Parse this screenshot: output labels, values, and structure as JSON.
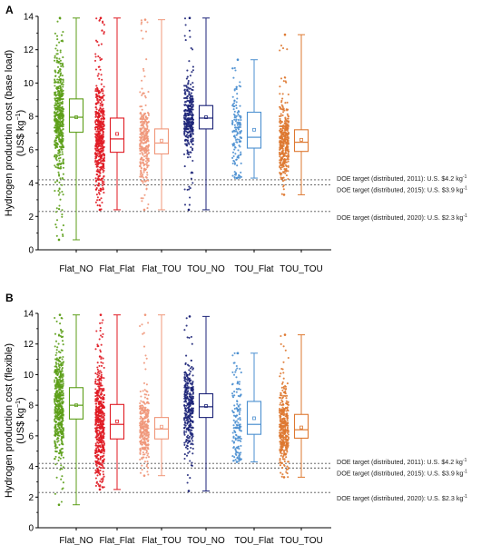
{
  "chart_data": [
    {
      "panel_label": "A",
      "type": "box-scatter",
      "ylabel_line1": "Hydrogen production cost (base load)",
      "ylabel_line2": "(US$ kg",
      "ylabel_sup": "−1",
      "ylabel_close": ")",
      "ylim": [
        0,
        14
      ],
      "yticks": [
        0,
        2,
        4,
        6,
        8,
        10,
        12,
        14
      ],
      "categories": [
        "Flat_NO",
        "Flat_Flat",
        "Flat_TOU",
        "TOU_NO",
        "TOU_Flat",
        "TOU_TOU"
      ],
      "colors": [
        "#5c9e18",
        "#e01b23",
        "#f0977a",
        "#1c2378",
        "#4b8fd0",
        "#de7830"
      ],
      "boxes": [
        {
          "whisker_low": 0.6,
          "q1": 7.05,
          "median": 7.95,
          "q3": 9.05,
          "whisker_high": 13.9,
          "mean": 7.95
        },
        {
          "whisker_low": 2.4,
          "q1": 5.85,
          "median": 6.65,
          "q3": 7.9,
          "whisker_high": 13.9,
          "mean": 6.95
        },
        {
          "whisker_low": 2.4,
          "q1": 5.75,
          "median": 6.4,
          "q3": 7.25,
          "whisker_high": 13.8,
          "mean": 6.55
        },
        {
          "whisker_low": 2.4,
          "q1": 7.25,
          "median": 7.9,
          "q3": 8.65,
          "whisker_high": 13.9,
          "mean": 7.95
        },
        {
          "whisker_low": 4.3,
          "q1": 6.1,
          "median": 6.75,
          "q3": 8.25,
          "whisker_high": 11.4,
          "mean": 7.2
        },
        {
          "whisker_low": 3.3,
          "q1": 5.9,
          "median": 6.45,
          "q3": 7.2,
          "whisker_high": 12.9,
          "mean": 6.6
        }
      ],
      "reference_lines": [
        {
          "value": 4.2,
          "label": "DOE target (distributed, 2011): U.S. $4.2 kg",
          "sup": "-1"
        },
        {
          "value": 3.9,
          "label": "DOE target (distributed, 2015): U.S. $3.9 kg",
          "sup": "-1"
        },
        {
          "value": 2.3,
          "label": "DOE target (distributed, 2020): U.S. $2.3 kg",
          "sup": "-1"
        }
      ]
    },
    {
      "panel_label": "B",
      "type": "box-scatter",
      "ylabel_line1": "Hydrogen production cost (flexible)",
      "ylabel_line2": "(US$ kg",
      "ylabel_sup": "−1",
      "ylabel_close": ")",
      "ylim": [
        0,
        14
      ],
      "yticks": [
        0,
        2,
        4,
        6,
        8,
        10,
        12,
        14
      ],
      "categories": [
        "Flat_NO",
        "Flat_Flat",
        "Flat_TOU",
        "TOU_NO",
        "TOU_Flat",
        "TOU_TOU"
      ],
      "colors": [
        "#5c9e18",
        "#e01b23",
        "#f0977a",
        "#1c2378",
        "#4b8fd0",
        "#de7830"
      ],
      "boxes": [
        {
          "whisker_low": 1.5,
          "q1": 7.1,
          "median": 8.0,
          "q3": 9.15,
          "whisker_high": 13.9,
          "mean": 8.0
        },
        {
          "whisker_low": 2.5,
          "q1": 5.8,
          "median": 6.75,
          "q3": 8.05,
          "whisker_high": 13.9,
          "mean": 6.95
        },
        {
          "whisker_low": 3.4,
          "q1": 5.8,
          "median": 6.45,
          "q3": 7.2,
          "whisker_high": 13.9,
          "mean": 6.6
        },
        {
          "whisker_low": 2.4,
          "q1": 7.2,
          "median": 7.9,
          "q3": 8.75,
          "whisker_high": 13.8,
          "mean": 7.95
        },
        {
          "whisker_low": 4.3,
          "q1": 6.1,
          "median": 6.75,
          "q3": 8.25,
          "whisker_high": 11.4,
          "mean": 7.15
        },
        {
          "whisker_low": 3.3,
          "q1": 5.85,
          "median": 6.4,
          "q3": 7.4,
          "whisker_high": 12.6,
          "mean": 6.55
        }
      ],
      "reference_lines": [
        {
          "value": 4.2,
          "label": "DOE target (distributed, 2011): U.S. $4.2 kg",
          "sup": "-1"
        },
        {
          "value": 3.9,
          "label": "DOE target (distributed, 2015): U.S. $3.9 kg",
          "sup": "-1"
        },
        {
          "value": 2.3,
          "label": "DOE target (distributed, 2020): U.S. $2.3 kg",
          "sup": "-1"
        }
      ]
    }
  ]
}
